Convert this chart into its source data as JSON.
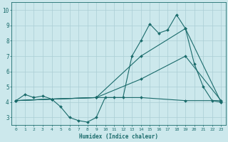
{
  "xlabel": "Humidex (Indice chaleur)",
  "bg_color": "#cce8ec",
  "line_color": "#1a6b6b",
  "grid_color": "#aacdd4",
  "xlim": [
    -0.5,
    23.5
  ],
  "ylim": [
    2.5,
    10.5
  ],
  "xticks": [
    0,
    1,
    2,
    3,
    4,
    5,
    6,
    7,
    8,
    9,
    10,
    11,
    12,
    13,
    14,
    15,
    16,
    17,
    18,
    19,
    20,
    21,
    22,
    23
  ],
  "yticks": [
    3,
    4,
    5,
    6,
    7,
    8,
    9,
    10
  ],
  "series": [
    {
      "x": [
        0,
        1,
        2,
        3,
        4,
        5,
        6,
        7,
        8,
        9,
        10,
        11,
        12,
        13,
        14,
        15,
        16,
        17,
        18,
        19,
        20,
        21,
        22,
        23
      ],
      "y": [
        4.1,
        4.5,
        4.3,
        4.4,
        4.2,
        3.7,
        3.0,
        2.8,
        2.7,
        3.0,
        4.3,
        4.3,
        4.3,
        7.0,
        8.0,
        9.1,
        8.5,
        8.7,
        9.7,
        8.8,
        6.5,
        5.0,
        4.1,
        4.0
      ]
    },
    {
      "x": [
        0,
        4,
        9,
        14,
        19,
        23
      ],
      "y": [
        4.1,
        4.2,
        4.3,
        7.0,
        8.8,
        4.0
      ]
    },
    {
      "x": [
        0,
        4,
        9,
        14,
        19,
        23
      ],
      "y": [
        4.1,
        4.2,
        4.3,
        5.5,
        7.0,
        4.1
      ]
    },
    {
      "x": [
        0,
        4,
        9,
        14,
        19,
        23
      ],
      "y": [
        4.1,
        4.2,
        4.3,
        4.3,
        4.1,
        4.1
      ]
    }
  ]
}
